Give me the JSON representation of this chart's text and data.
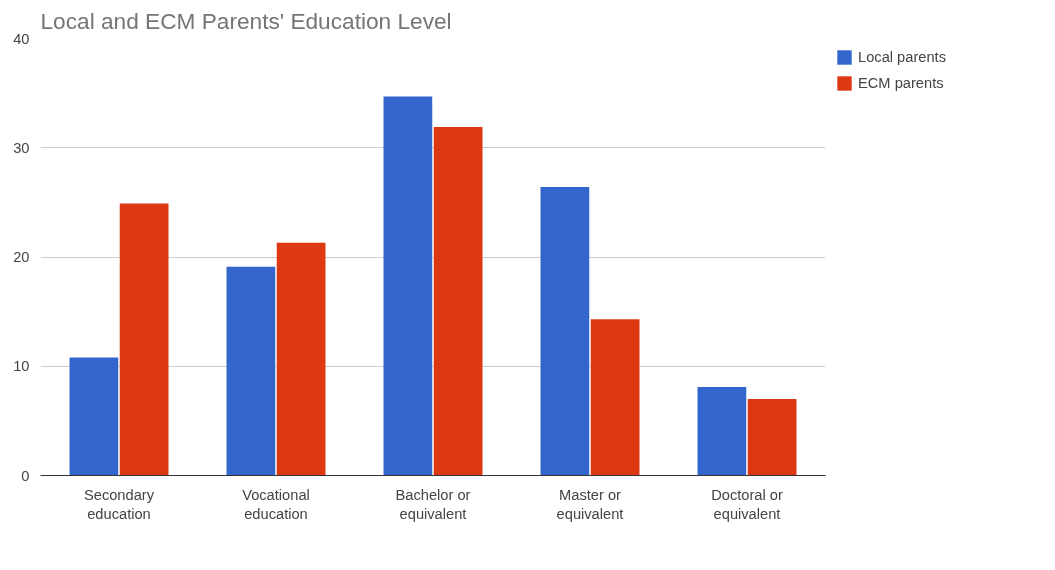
{
  "chart_data": {
    "type": "bar",
    "title": "Local and ECM Parents' Education Level",
    "categories": [
      "Secondary\neducation",
      "Vocational\neducation",
      "Bachelor or\nequivalent",
      "Master or\nequivalent",
      "Doctoral or\nequivalent"
    ],
    "series": [
      {
        "name": "Local parents",
        "color": "#3366cc",
        "values": [
          10.8,
          19.1,
          34.7,
          26.4,
          8.1
        ]
      },
      {
        "name": "ECM parents",
        "color": "#dc3912",
        "values": [
          24.9,
          21.3,
          31.9,
          14.3,
          7.0
        ]
      }
    ],
    "ylim": [
      0,
      40
    ],
    "yticks": [
      0,
      10,
      20,
      30,
      40
    ],
    "grid": "y",
    "legend": "top right"
  }
}
